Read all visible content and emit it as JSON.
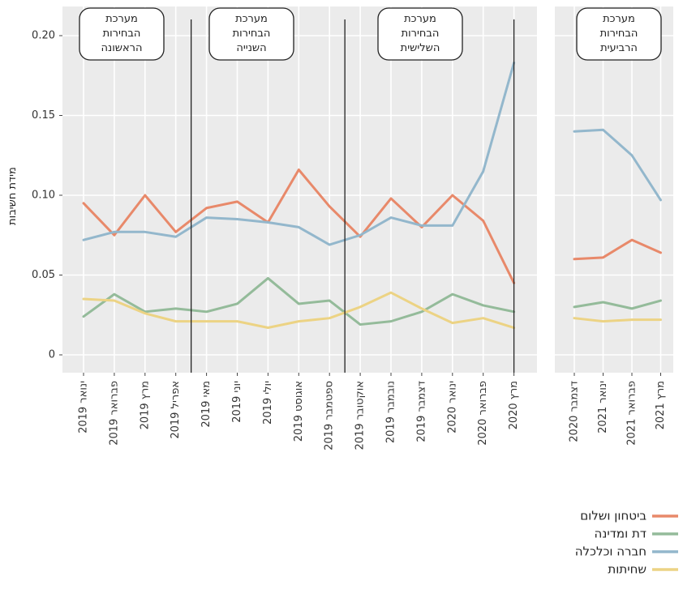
{
  "colors": {
    "background": "#ffffff",
    "panel": "#ebebeb",
    "grid": "#ffffff",
    "divider": "#222222"
  },
  "chart_data": {
    "type": "line",
    "ylabel": "מידת חשיבות",
    "ylim": [
      -0.01,
      0.205
    ],
    "y_ticks": [
      0,
      0.05,
      0.1,
      0.15,
      0.2
    ],
    "y_tick_labels": [
      "0",
      "0.05",
      "0.10",
      "0.15",
      "0.20"
    ],
    "grid": true,
    "legend_position": "bottom-right",
    "panels": [
      {
        "categories": [
          "ינואר 2019",
          "פברואר 2019",
          "מרץ 2019",
          "אפריל 2019",
          "מאי 2019",
          "יוני 2019",
          "יולי 2019",
          "אוגוסט 2019",
          "ספטמבר 2019",
          "אוקטובר 2019",
          "נובמבר 2019",
          "דצמבר 2019",
          "ינואר 2020",
          "פברואר 2020",
          "מרץ 2020"
        ],
        "dividers_after": [
          "אפריל 2019",
          "ספטמבר 2019",
          "מרץ 2020"
        ],
        "annotations": [
          {
            "lines": [
              "מערכת",
              "הבחירות",
              "הראשונה"
            ],
            "center_category": "מרץ 2019"
          },
          {
            "lines": [
              "מערכת",
              "הבחירות",
              "השנייה"
            ],
            "center_category": "יולי 2019"
          },
          {
            "lines": [
              "מערכת",
              "הבחירות",
              "השלישית"
            ],
            "center_category": "דצמבר 2019"
          }
        ],
        "series": [
          {
            "name": "ביטחון ושלום",
            "color": "#e8896a",
            "values": [
              0.095,
              0.075,
              0.1,
              0.077,
              0.092,
              0.096,
              0.083,
              0.116,
              0.093,
              0.074,
              0.098,
              0.08,
              0.1,
              0.084,
              0.045
            ]
          },
          {
            "name": "דת ומדינה",
            "color": "#94bb9a",
            "values": [
              0.024,
              0.038,
              0.027,
              0.029,
              0.027,
              0.032,
              0.048,
              0.032,
              0.034,
              0.019,
              0.021,
              0.027,
              0.038,
              0.031,
              0.027
            ]
          },
          {
            "name": "חברה וכלכלה",
            "color": "#93b7cc",
            "values": [
              0.072,
              0.077,
              0.077,
              0.074,
              0.086,
              0.085,
              0.083,
              0.08,
              0.069,
              0.075,
              0.086,
              0.081,
              0.081,
              0.115,
              0.183
            ]
          },
          {
            "name": "שחיתות",
            "color": "#ecd384",
            "values": [
              0.035,
              0.034,
              0.026,
              0.021,
              0.021,
              0.021,
              0.017,
              0.021,
              0.023,
              0.03,
              0.039,
              0.029,
              0.02,
              0.023,
              0.017
            ]
          }
        ]
      },
      {
        "categories": [
          "דצמבר 2020",
          "ינואר 2021",
          "פברואר 2021",
          "מרץ 2021"
        ],
        "dividers_after": [],
        "annotations": [
          {
            "lines": [
              "מערכת",
              "הבחירות",
              "הרביעית"
            ],
            "center_category": "between-ינואר-פברואר 2021"
          }
        ],
        "series": [
          {
            "name": "ביטחון ושלום",
            "color": "#e8896a",
            "values": [
              0.06,
              0.061,
              0.072,
              0.064
            ]
          },
          {
            "name": "דת ומדינה",
            "color": "#94bb9a",
            "values": [
              0.03,
              0.033,
              0.029,
              0.034
            ]
          },
          {
            "name": "חברה וכלכלה",
            "color": "#93b7cc",
            "values": [
              0.14,
              0.141,
              0.125,
              0.097
            ]
          },
          {
            "name": "שחיתות",
            "color": "#ecd384",
            "values": [
              0.023,
              0.021,
              0.022,
              0.022
            ]
          }
        ]
      }
    ],
    "legend": [
      {
        "name": "ביטחון ושלום",
        "color": "#e8896a"
      },
      {
        "name": "דת ומדינה",
        "color": "#94bb9a"
      },
      {
        "name": "חברה וכלכלה",
        "color": "#93b7cc"
      },
      {
        "name": "שחיתות",
        "color": "#ecd384"
      }
    ]
  }
}
